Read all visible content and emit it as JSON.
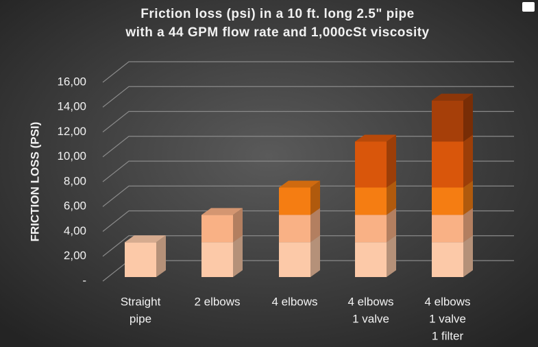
{
  "chart_data": {
    "type": "stacked-bar-3d",
    "title": [
      "Friction loss (psi) in a 10 ft. long 2.5\" pipe",
      "with a 44 GPM flow rate and 1,000cSt viscosity"
    ],
    "y_axis_label": "FRICTION LOSS (PSI)",
    "categories": [
      [
        "Straight",
        "pipe"
      ],
      [
        "2 elbows"
      ],
      [
        "4 elbows"
      ],
      [
        "4 elbows",
        "1 valve"
      ],
      [
        "4 elbows",
        "1 valve",
        "1 filter"
      ]
    ],
    "series": [
      {
        "color": "#fcc9a8",
        "values": [
          2.8,
          2.8,
          2.8,
          2.8,
          2.8
        ]
      },
      {
        "color": "#f9b185",
        "values": [
          null,
          2.2,
          2.2,
          2.2,
          2.2
        ]
      },
      {
        "color": "#f57d12",
        "values": [
          null,
          null,
          2.2,
          2.2,
          2.2
        ]
      },
      {
        "color": "#d9560b",
        "values": [
          null,
          null,
          null,
          3.7,
          3.7
        ]
      },
      {
        "color": "#a63f09",
        "values": [
          null,
          null,
          null,
          null,
          3.3
        ]
      }
    ],
    "ylim": [
      0,
      16
    ],
    "yticks": [
      {
        "value": 0,
        "label": "-"
      },
      {
        "value": 2,
        "label": "2,00"
      },
      {
        "value": 4,
        "label": "4,00"
      },
      {
        "value": 6,
        "label": "6,00"
      },
      {
        "value": 8,
        "label": "8,00"
      },
      {
        "value": 10,
        "label": "10,00"
      },
      {
        "value": 12,
        "label": "12,00"
      },
      {
        "value": 14,
        "label": "14,00"
      },
      {
        "value": 16,
        "label": "16,00"
      }
    ],
    "grid": true
  }
}
